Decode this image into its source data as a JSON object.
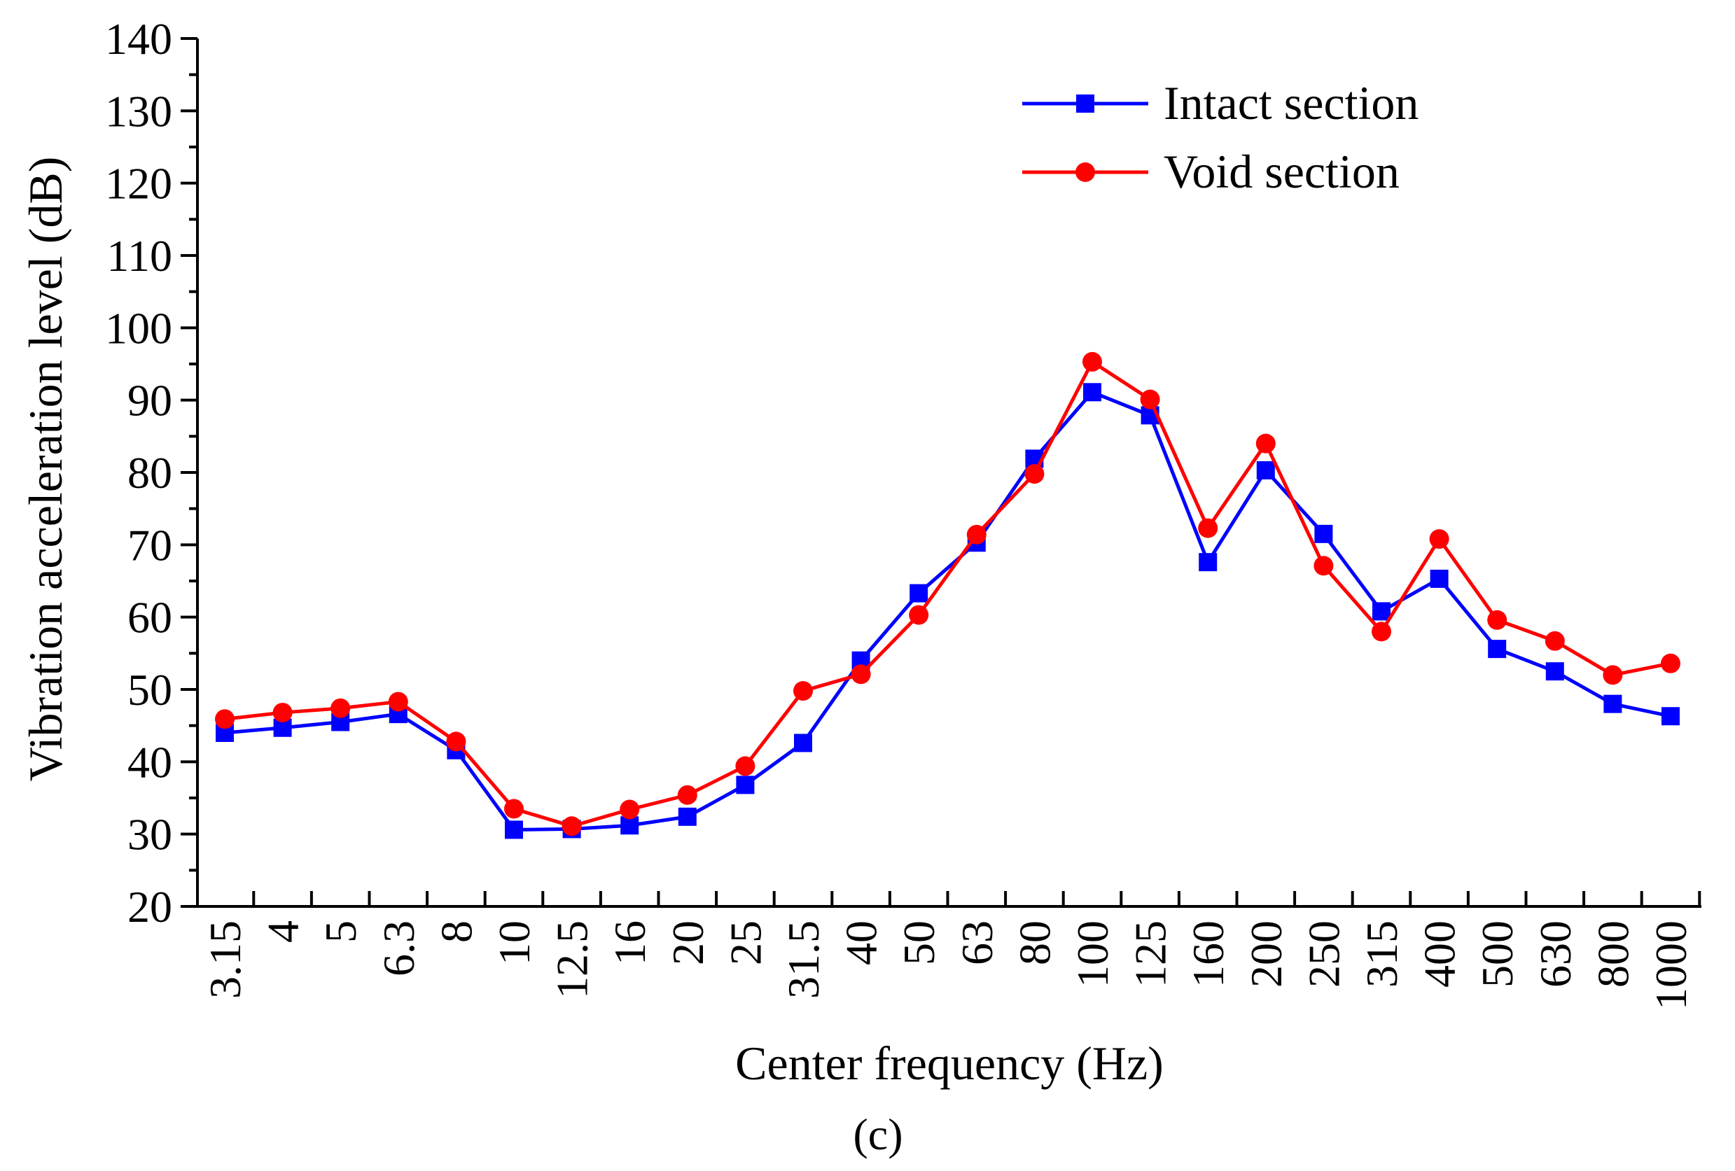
{
  "chart_data": {
    "type": "line",
    "title": "",
    "xlabel": "Center frequency (Hz)",
    "ylabel": "Vibration acceleration level (dB)",
    "ylim": [
      20,
      140
    ],
    "yticks": [
      "20",
      "30",
      "40",
      "50",
      "60",
      "70",
      "80",
      "90",
      "100",
      "110",
      "120",
      "130",
      "140"
    ],
    "categories": [
      "3.15",
      "4",
      "5",
      "6.3",
      "8",
      "10",
      "12.5",
      "16",
      "20",
      "25",
      "31.5",
      "40",
      "50",
      "63",
      "80",
      "100",
      "125",
      "160",
      "200",
      "250",
      "315",
      "400",
      "500",
      "630",
      "800",
      "1000"
    ],
    "grid": false,
    "legend": "top-right",
    "series": [
      {
        "name": "Intact section",
        "color": "#0000ff",
        "marker": "square",
        "values": [
          44.0,
          44.7,
          45.5,
          46.6,
          41.6,
          30.6,
          30.7,
          31.2,
          32.4,
          36.8,
          42.6,
          54.0,
          63.3,
          70.3,
          81.9,
          91.1,
          87.9,
          67.6,
          80.3,
          71.5,
          60.8,
          65.3,
          55.6,
          52.5,
          48.0,
          46.3
        ]
      },
      {
        "name": "Void section",
        "color": "#ff0000",
        "marker": "circle",
        "values": [
          45.9,
          46.8,
          47.4,
          48.3,
          42.8,
          33.5,
          31.1,
          33.4,
          35.4,
          39.4,
          49.8,
          52.1,
          60.3,
          71.4,
          79.8,
          95.3,
          90.1,
          72.3,
          84.0,
          67.1,
          58.0,
          70.8,
          59.6,
          56.7,
          52.0,
          53.6
        ]
      }
    ],
    "panel_label": "(c)"
  }
}
